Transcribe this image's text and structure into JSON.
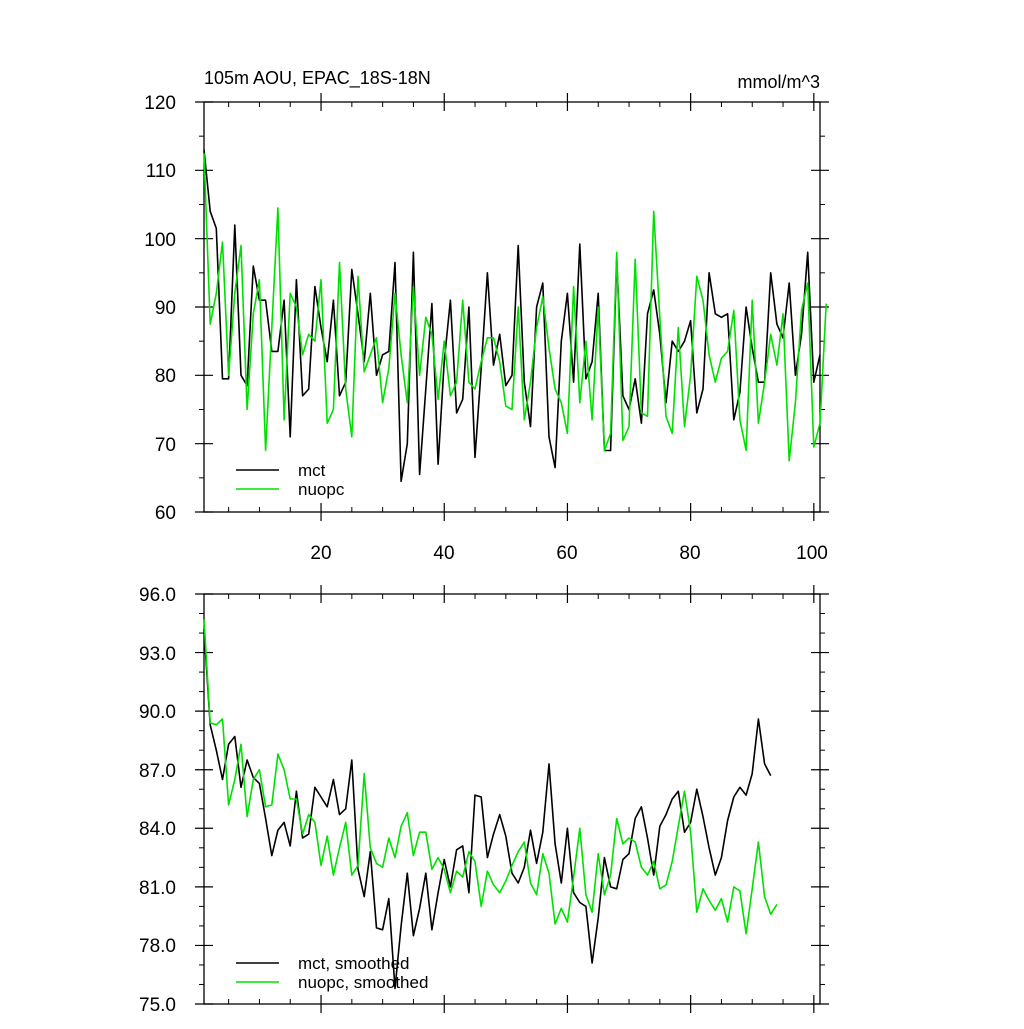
{
  "chart_data": [
    {
      "type": "line",
      "title": "105m AOU, EPAC_18S-18N",
      "units_label": "mmol/m^3",
      "xlim": [
        1,
        101
      ],
      "ylim": [
        60,
        120
      ],
      "x_ticks": [
        20,
        40,
        60,
        80,
        100
      ],
      "y_ticks": [
        60,
        70,
        80,
        90,
        100,
        110,
        120
      ],
      "y_tick_labels": [
        "60",
        "70",
        "80",
        "90",
        "100",
        "110",
        "120"
      ],
      "x_tick_labels": [
        "20",
        "40",
        "60",
        "80",
        "100"
      ],
      "legend": "bottom-left",
      "series": [
        {
          "name": "mct",
          "color": "#000000",
          "values": [
            113,
            104,
            101.5,
            79.5,
            79.5,
            102,
            80,
            78.5,
            96,
            91,
            91,
            83.5,
            83.5,
            91,
            71,
            94,
            77,
            78,
            93,
            87,
            82,
            91,
            77,
            79,
            95.5,
            89,
            82,
            92,
            80,
            83,
            83.5,
            96.5,
            64.5,
            70,
            98,
            65.5,
            78,
            90.5,
            67,
            82,
            91,
            74.5,
            76.5,
            90,
            68,
            81,
            95,
            81.5,
            86,
            78.5,
            80,
            99,
            79,
            72.5,
            90,
            93.5,
            71,
            66.5,
            85,
            92,
            79,
            99.2,
            79.5,
            82,
            92,
            69,
            69,
            97,
            77,
            75,
            79.5,
            73,
            89,
            92.5,
            86,
            76,
            85,
            83.5,
            85,
            88,
            74.5,
            78,
            95,
            89,
            88.5,
            89,
            73.5,
            77.5,
            90,
            84,
            79,
            79,
            95,
            87.5,
            85.5,
            93.5,
            80,
            86,
            98,
            79,
            83
          ]
        },
        {
          "name": "nuopc",
          "color": "#00e000",
          "values": [
            112.5,
            87.5,
            92,
            99.5,
            80,
            92,
            99,
            75,
            89,
            94,
            69,
            87,
            104.5,
            73.5,
            92,
            90,
            83,
            86,
            85,
            94,
            73,
            75,
            96.5,
            78,
            71,
            94.5,
            80.5,
            83,
            85.5,
            76,
            81,
            92,
            83,
            76,
            93,
            80,
            88.5,
            86,
            76.5,
            85,
            77,
            79,
            91,
            79,
            78,
            82,
            85.5,
            85.5,
            82,
            75.5,
            75,
            90,
            73.5,
            79,
            87,
            91.5,
            84,
            78,
            76,
            71.5,
            93,
            76,
            85,
            73.5,
            90,
            69,
            71.5,
            98,
            70.5,
            72.5,
            97,
            74.5,
            74,
            104,
            88.5,
            74,
            71.5,
            87,
            72.5,
            80,
            94.5,
            91,
            83,
            79,
            82.5,
            83.5,
            89.5,
            73.5,
            69,
            91,
            73,
            79,
            86,
            81.5,
            89,
            67.5,
            76,
            89.5,
            93.5,
            69.5,
            73,
            90.5
          ]
        }
      ]
    },
    {
      "type": "line",
      "xlim": [
        1,
        101
      ],
      "ylim": [
        75.0,
        96.0
      ],
      "x_ticks": [
        20,
        40,
        60,
        80,
        100
      ],
      "y_ticks": [
        75.0,
        78.0,
        81.0,
        84.0,
        87.0,
        90.0,
        93.0,
        96.0
      ],
      "y_tick_labels": [
        "75.0",
        "78.0",
        "81.0",
        "84.0",
        "87.0",
        "90.0",
        "93.0",
        "96.0"
      ],
      "legend": "bottom-left",
      "series": [
        {
          "name": "mct, smoothed",
          "color": "#000000",
          "values": [
            94.2,
            89.3,
            88.0,
            86.5,
            88.3,
            88.7,
            86.1,
            87.5,
            86.6,
            86.3,
            84.5,
            82.6,
            83.9,
            84.3,
            83.1,
            85.9,
            83.5,
            83.7,
            86.1,
            85.6,
            85.1,
            86.5,
            84.7,
            85.0,
            87.5,
            81.9,
            80.5,
            82.8,
            78.9,
            78.8,
            80.4,
            75.8,
            79.0,
            81.7,
            78.5,
            79.9,
            81.7,
            78.8,
            80.7,
            82.4,
            81.0,
            82.9,
            83.1,
            80.7,
            85.7,
            85.6,
            82.5,
            83.7,
            84.7,
            83.6,
            81.7,
            81.2,
            82.0,
            83.9,
            82.2,
            83.8,
            87.3,
            83.2,
            81.2,
            84.0,
            80.7,
            80.2,
            80.0,
            77.1,
            79.4,
            82.5,
            81.0,
            80.9,
            82.4,
            82.7,
            84.5,
            85.1,
            83.5,
            81.6,
            84.1,
            84.7,
            85.5,
            85.9,
            83.8,
            84.3,
            86.0,
            84.6,
            83.0,
            81.6,
            82.5,
            84.4,
            85.6,
            86.1,
            85.7,
            86.8,
            89.6,
            87.3,
            86.7
          ]
        },
        {
          "name": "nuopc, smoothed",
          "color": "#00e000",
          "values": [
            94.7,
            89.4,
            89.3,
            89.6,
            85.2,
            86.5,
            88.3,
            84.6,
            86.5,
            87.0,
            85.1,
            85.2,
            87.8,
            87.0,
            85.5,
            85.5,
            83.7,
            84.7,
            84.3,
            82.1,
            83.6,
            81.6,
            83.0,
            84.3,
            81.6,
            82.1,
            86.8,
            83.0,
            82.2,
            82.0,
            83.5,
            82.5,
            84.1,
            84.8,
            82.6,
            83.8,
            83.8,
            81.9,
            82.5,
            81.9,
            80.7,
            81.8,
            81.5,
            82.8,
            82.3,
            80.0,
            81.8,
            81.1,
            80.7,
            81.3,
            82.1,
            82.8,
            83.3,
            81.2,
            80.6,
            82.7,
            81.7,
            79.1,
            79.9,
            79.2,
            81.5,
            84.0,
            80.6,
            79.7,
            82.7,
            80.6,
            81.6,
            84.5,
            83.2,
            83.5,
            83.3,
            82.0,
            81.6,
            82.3,
            80.9,
            81.1,
            82.3,
            84.1,
            85.9,
            83.8,
            79.7,
            80.9,
            80.3,
            79.8,
            80.4,
            79.2,
            81.0,
            80.8,
            78.6,
            80.9,
            83.3,
            80.5,
            79.6,
            80.1
          ]
        }
      ]
    }
  ]
}
